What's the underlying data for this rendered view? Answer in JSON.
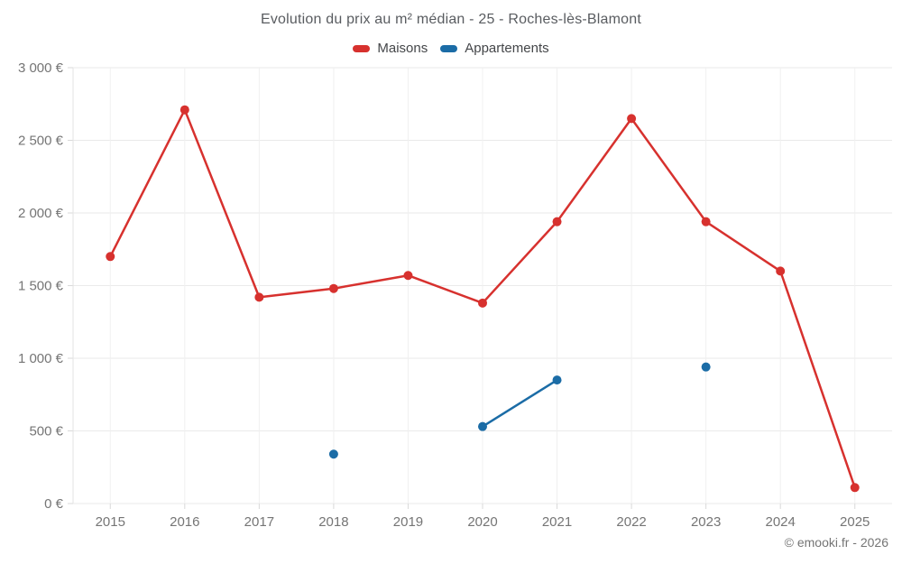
{
  "chart_data": {
    "type": "line",
    "title": "Evolution du prix au m² médian - 25 - Roches-lès-Blamont",
    "x": [
      2015,
      2016,
      2017,
      2018,
      2019,
      2020,
      2021,
      2022,
      2023,
      2024,
      2025
    ],
    "series": [
      {
        "name": "Maisons",
        "color": "#d7312e",
        "values": [
          1700,
          2710,
          1420,
          1480,
          1570,
          1380,
          1940,
          2650,
          1940,
          1600,
          110
        ]
      },
      {
        "name": "Appartements",
        "color": "#1b6ca6",
        "values": [
          null,
          null,
          null,
          340,
          null,
          530,
          850,
          null,
          940,
          null,
          null
        ]
      }
    ],
    "ylim": [
      0,
      3000
    ],
    "ytick_values": [
      0,
      500,
      1000,
      1500,
      2000,
      2500,
      3000
    ],
    "ytick_labels": [
      "0 €",
      "500 €",
      "1 000 €",
      "1 500 €",
      "2 000 €",
      "2 500 €",
      "3 000 €"
    ],
    "xlabel": "",
    "ylabel": "",
    "grid": true,
    "legend_position": "top",
    "marker_radius": 5,
    "footer": "© emooki.fr - 2026"
  },
  "colors": {
    "h_gridline": "#eaeaea",
    "v_gridline": "#f0f0f0",
    "axis_line": "#e3e3e3",
    "tick": "#d9d9d9"
  }
}
